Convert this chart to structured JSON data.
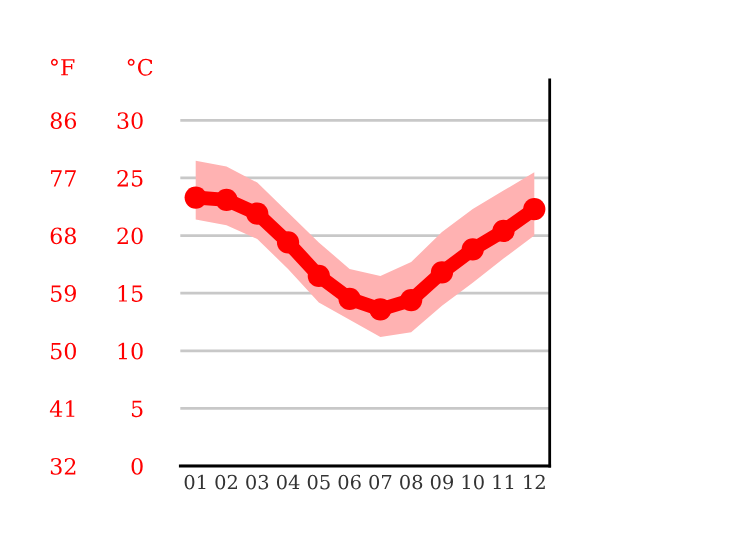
{
  "chart_data": {
    "type": "line",
    "categories": [
      "01",
      "02",
      "03",
      "04",
      "05",
      "06",
      "07",
      "08",
      "09",
      "10",
      "11",
      "12"
    ],
    "series": [
      {
        "color": "#ff0000",
        "values": [
          23.3,
          23.1,
          21.9,
          19.4,
          16.5,
          14.5,
          13.6,
          14.4,
          16.8,
          18.8,
          20.4,
          22.3
        ],
        "lower": [
          21.4,
          20.9,
          19.7,
          17.1,
          14.2,
          12.7,
          11.2,
          11.6,
          13.9,
          15.9,
          18.0,
          20.0
        ],
        "upper": [
          26.5,
          26.0,
          24.6,
          22.0,
          19.4,
          17.1,
          16.5,
          17.7,
          20.3,
          22.3,
          23.9,
          25.5
        ]
      }
    ],
    "ylabel": "°C",
    "y2label": "°F",
    "ylim": [
      0,
      33.5
    ],
    "yticks": [
      0,
      5,
      10,
      15,
      20,
      25,
      30
    ],
    "y2lim": [
      32,
      92.3
    ],
    "y2ticks": [
      32,
      41,
      50,
      59,
      68,
      77,
      86
    ],
    "grid": "y",
    "marker": "circle",
    "line_style": "solid"
  }
}
